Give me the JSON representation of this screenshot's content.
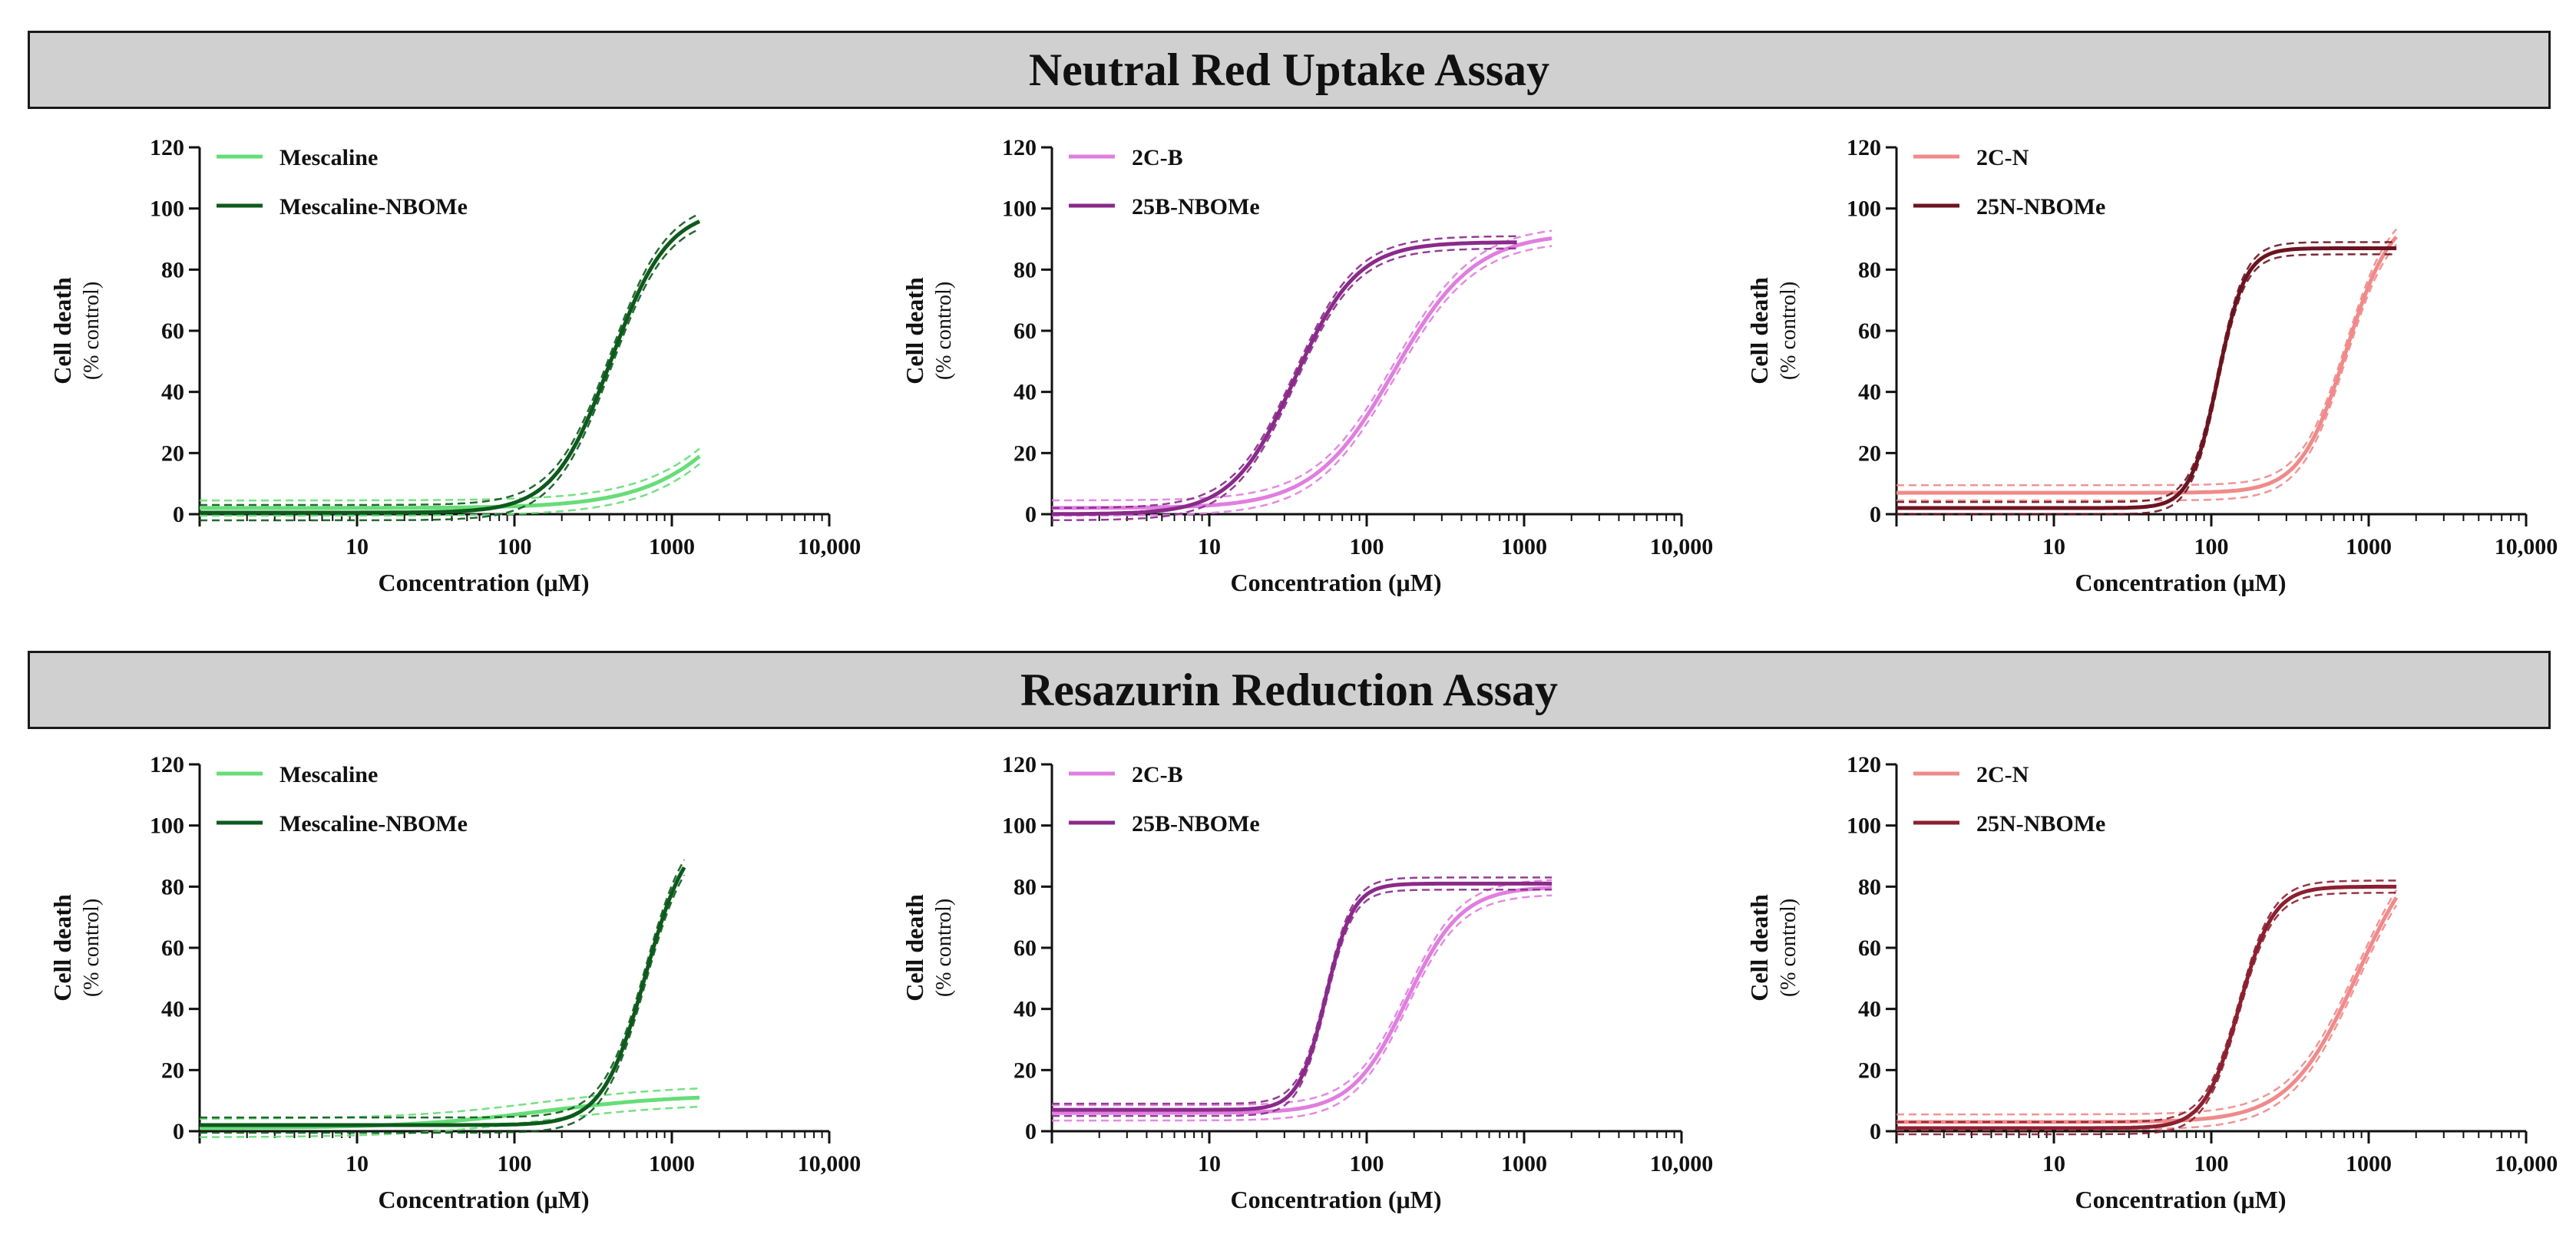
{
  "banners": {
    "top": "Neutral Red Uptake Assay",
    "bottom": "Resazurin Reduction Assay"
  },
  "chart_data": [
    {
      "id": "nru-mescaline",
      "type": "line",
      "assay": "Neutral Red Uptake Assay",
      "title": "",
      "xlabel": "Concentration (μM)",
      "ylabel": "Cell death",
      "ylabel_sub": "(% control)",
      "xscale": "log",
      "xlim": [
        1,
        10000
      ],
      "ylim": [
        0,
        120
      ],
      "xticks": [
        10,
        100,
        1000,
        10000
      ],
      "xtick_labels": [
        "10",
        "100",
        "1000",
        "10,000"
      ],
      "yticks": [
        0,
        20,
        40,
        60,
        80,
        100,
        120
      ],
      "legend_position": "top-left",
      "series": [
        {
          "name": "Mescaline",
          "color": "#66dd77",
          "bottom": 2,
          "top": 100,
          "ec50": 5000,
          "hill": 1.3,
          "x_max": 1500,
          "ci": 2.5
        },
        {
          "name": "Mescaline-NBOMe",
          "color": "#0d5a1c",
          "bottom": 0.5,
          "top": 100,
          "ec50": 410,
          "hill": 2.4,
          "x_max": 1500,
          "ci": 2.5
        }
      ]
    },
    {
      "id": "nru-2cb",
      "type": "line",
      "assay": "Neutral Red Uptake Assay",
      "title": "",
      "xlabel": "Concentration (μM)",
      "ylabel": "Cell death",
      "ylabel_sub": "(% control)",
      "xscale": "log",
      "xlim": [
        1,
        10000
      ],
      "ylim": [
        0,
        120
      ],
      "xticks": [
        10,
        100,
        1000,
        10000
      ],
      "xtick_labels": [
        "10",
        "100",
        "1000",
        "10,000"
      ],
      "yticks": [
        0,
        20,
        40,
        60,
        80,
        100,
        120
      ],
      "legend_position": "top-left",
      "series": [
        {
          "name": "2C-B",
          "color": "#e07ee0",
          "bottom": 2,
          "top": 92,
          "ec50": 150,
          "hill": 1.7,
          "x_max": 1500,
          "ci": 2.5
        },
        {
          "name": "25B-NBOMe",
          "color": "#8a2a8a",
          "bottom": 0,
          "top": 89,
          "ec50": 35,
          "hill": 2.2,
          "x_max": 900,
          "ci": 2.0
        }
      ]
    },
    {
      "id": "nru-2cn",
      "type": "line",
      "assay": "Neutral Red Uptake Assay",
      "title": "",
      "xlabel": "Concentration (μM)",
      "ylabel": "Cell death",
      "ylabel_sub": "(% control)",
      "xscale": "log",
      "xlim": [
        1,
        10000
      ],
      "ylim": [
        0,
        120
      ],
      "xticks": [
        10,
        100,
        1000,
        10000
      ],
      "xtick_labels": [
        "10",
        "100",
        "1000",
        "10,000"
      ],
      "yticks": [
        0,
        20,
        40,
        60,
        80,
        100,
        120
      ],
      "legend_position": "top-left",
      "series": [
        {
          "name": "2C-N",
          "color": "#f08a8a",
          "bottom": 7,
          "top": 100,
          "ec50": 720,
          "hill": 3.0,
          "x_max": 1500,
          "ci": 2.5
        },
        {
          "name": "25N-NBOMe",
          "color": "#6b1420",
          "bottom": 2,
          "top": 87,
          "ec50": 110,
          "hill": 5.0,
          "x_max": 1500,
          "ci": 2.0
        }
      ]
    },
    {
      "id": "rr-mescaline",
      "type": "line",
      "assay": "Resazurin Reduction Assay",
      "title": "",
      "xlabel": "Concentration (μM)",
      "ylabel": "Cell death",
      "ylabel_sub": "(% control)",
      "xscale": "log",
      "xlim": [
        1,
        10000
      ],
      "ylim": [
        0,
        120
      ],
      "xticks": [
        10,
        100,
        1000,
        10000
      ],
      "xtick_labels": [
        "10",
        "100",
        "1000",
        "10,000"
      ],
      "yticks": [
        0,
        20,
        40,
        60,
        80,
        100,
        120
      ],
      "legend_position": "top-left",
      "series": [
        {
          "name": "Mescaline",
          "color": "#66dd77",
          "bottom": 1,
          "top": 12,
          "ec50": 150,
          "hill": 1.0,
          "x_max": 1500,
          "ci": 3.0
        },
        {
          "name": "Mescaline-NBOMe",
          "color": "#0d5a1c",
          "bottom": 2,
          "top": 100,
          "ec50": 680,
          "hill": 3.2,
          "x_max": 1200,
          "ci": 2.5
        }
      ]
    },
    {
      "id": "rr-2cb",
      "type": "line",
      "assay": "Resazurin Reduction Assay",
      "title": "",
      "xlabel": "Concentration (μM)",
      "ylabel": "Cell death",
      "ylabel_sub": "(% control)",
      "xscale": "log",
      "xlim": [
        1,
        10000
      ],
      "ylim": [
        0,
        120
      ],
      "xticks": [
        10,
        100,
        1000,
        10000
      ],
      "xtick_labels": [
        "10",
        "100",
        "1000",
        "10,000"
      ],
      "yticks": [
        0,
        20,
        40,
        60,
        80,
        100,
        120
      ],
      "legend_position": "top-left",
      "series": [
        {
          "name": "2C-B",
          "color": "#e07ee0",
          "bottom": 6,
          "top": 80,
          "ec50": 180,
          "hill": 2.5,
          "x_max": 1500,
          "ci": 2.5
        },
        {
          "name": "25B-NBOMe",
          "color": "#8a2a8a",
          "bottom": 7,
          "top": 81,
          "ec50": 55,
          "hill": 5.0,
          "x_max": 1500,
          "ci": 2.0
        }
      ]
    },
    {
      "id": "rr-2cn",
      "type": "line",
      "assay": "Resazurin Reduction Assay",
      "title": "",
      "xlabel": "Concentration (μM)",
      "ylabel": "Cell death",
      "ylabel_sub": "(% control)",
      "xscale": "log",
      "xlim": [
        1,
        10000
      ],
      "ylim": [
        0,
        120
      ],
      "xticks": [
        10,
        100,
        1000,
        10000
      ],
      "xtick_labels": [
        "10",
        "100",
        "1000",
        "10,000"
      ],
      "yticks": [
        0,
        20,
        40,
        60,
        80,
        100,
        120
      ],
      "legend_position": "top-left",
      "series": [
        {
          "name": "2C-N",
          "color": "#f08a8a",
          "bottom": 3,
          "top": 100,
          "ec50": 850,
          "hill": 2.0,
          "x_max": 1500,
          "ci": 2.5
        },
        {
          "name": "25N-NBOMe",
          "color": "#8c2030",
          "bottom": 1,
          "top": 80,
          "ec50": 150,
          "hill": 4.0,
          "x_max": 1500,
          "ci": 2.0
        }
      ]
    }
  ]
}
